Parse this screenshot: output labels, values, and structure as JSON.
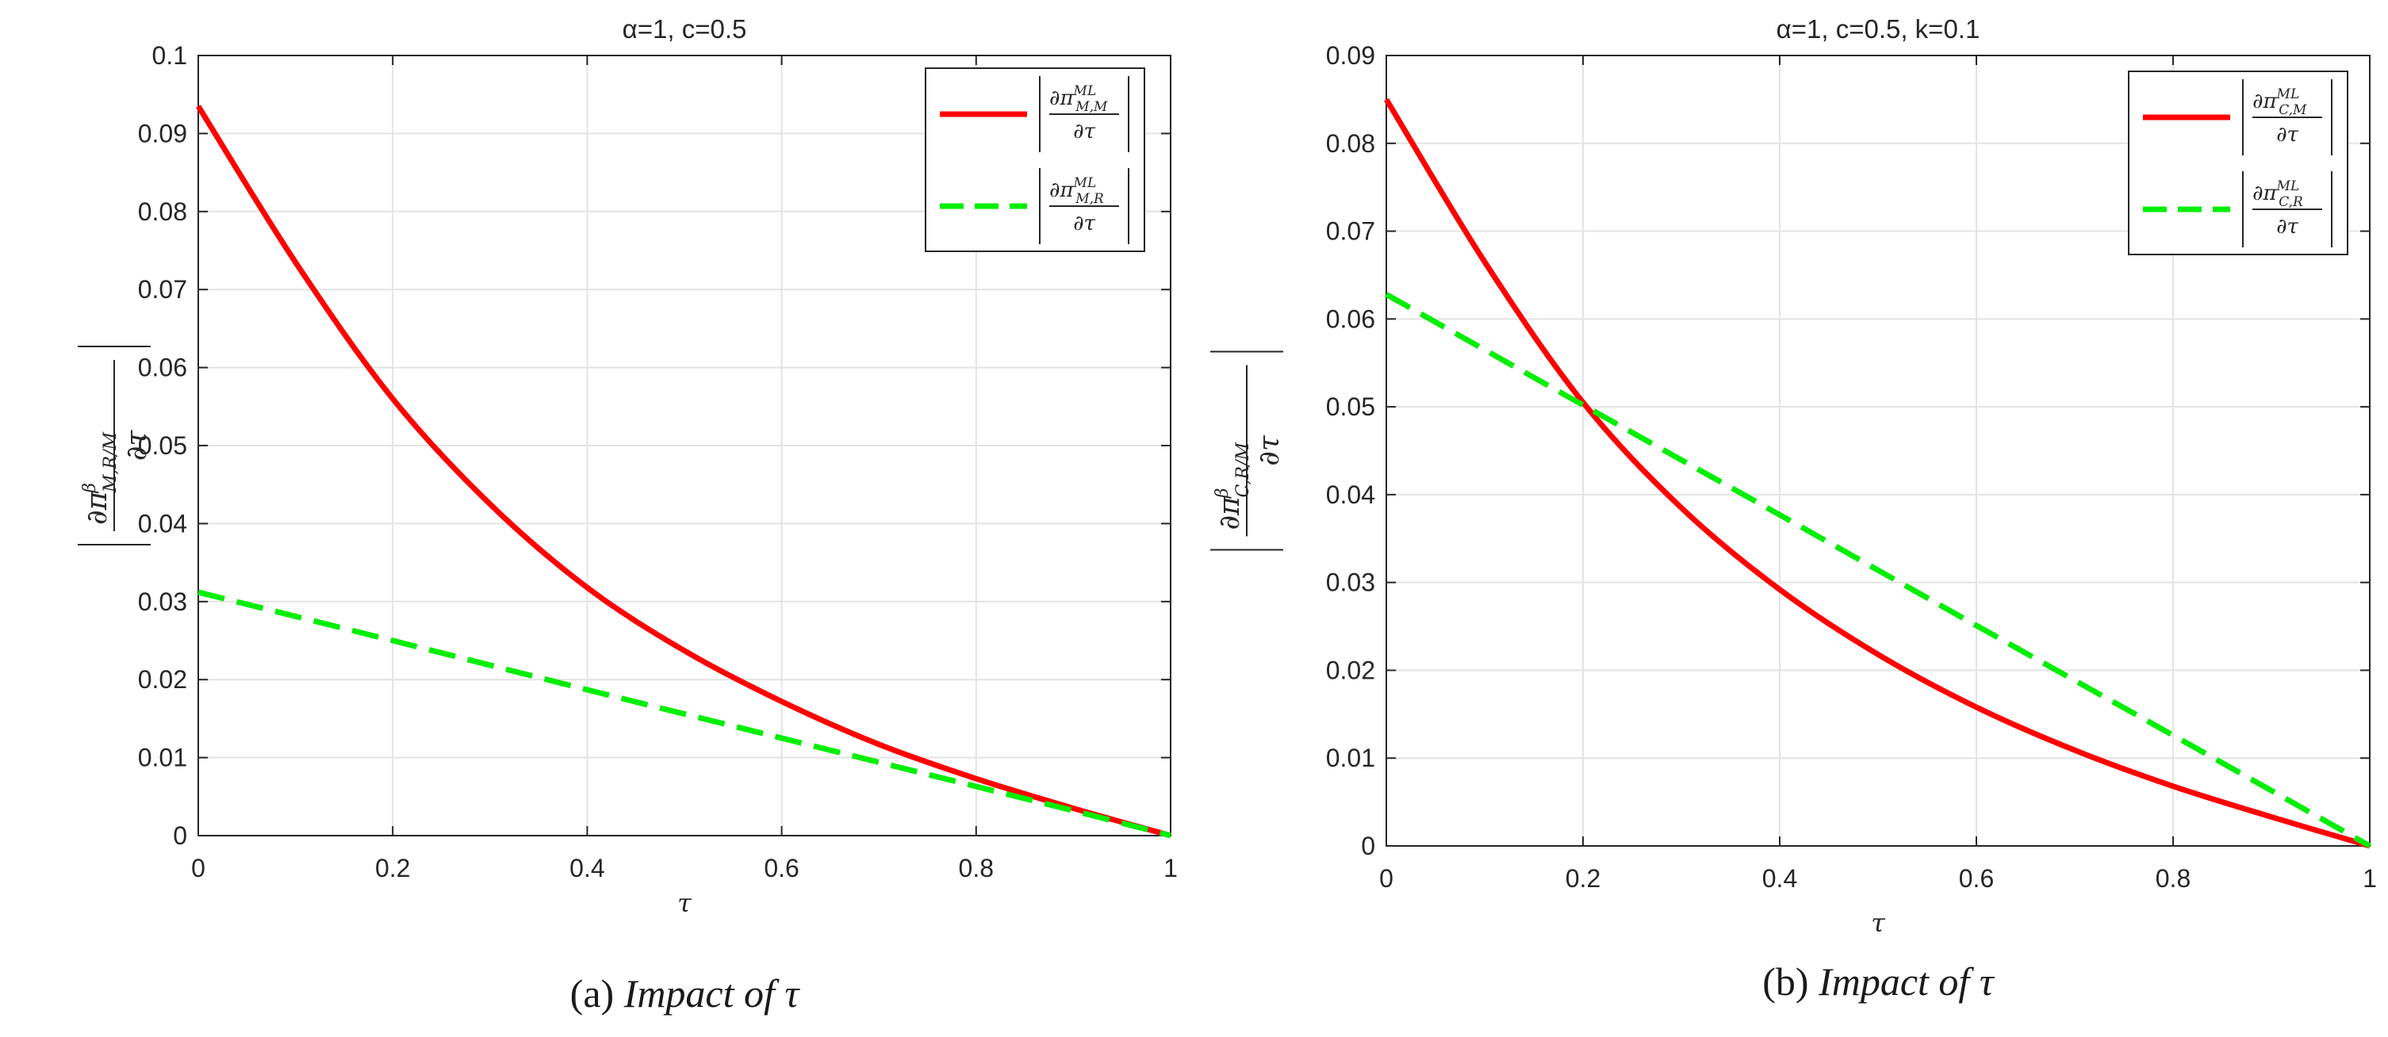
{
  "chart_data": [
    {
      "type": "line",
      "title": "α=1, c=0.5",
      "xlabel": "τ",
      "ylabel": {
        "numerator": "∂π",
        "superscript": "β",
        "subscript": "M,R/M",
        "denominator": "∂τ"
      },
      "xlim": [
        0,
        1
      ],
      "ylim": [
        0,
        0.1
      ],
      "xticks": [
        "0",
        "0.2",
        "0.4",
        "0.6",
        "0.8",
        "1"
      ],
      "yticks": [
        "0",
        "0.01",
        "0.02",
        "0.03",
        "0.04",
        "0.05",
        "0.06",
        "0.07",
        "0.08",
        "0.09",
        "0.1"
      ],
      "grid": true,
      "legend_position": "top-right",
      "series": [
        {
          "name": "|∂π^ML_M,M / ∂τ|",
          "legend_sup": "ML",
          "legend_sub": "M,M",
          "color": "#ff0000",
          "style": "solid",
          "x": [
            0,
            0.1,
            0.2,
            0.3,
            0.4,
            0.5,
            0.6,
            0.7,
            0.8,
            0.9,
            1.0
          ],
          "y": [
            0.0935,
            0.0735,
            0.056,
            0.0425,
            0.0318,
            0.0237,
            0.0172,
            0.0117,
            0.0073,
            0.0035,
            0.0
          ]
        },
        {
          "name": "|∂π^ML_M,R / ∂τ|",
          "legend_sup": "ML",
          "legend_sub": "M,R",
          "color": "#00ee00",
          "style": "dashed",
          "x": [
            0,
            0.2,
            0.4,
            0.6,
            0.8,
            0.9,
            1.0
          ],
          "y": [
            0.0312,
            0.025,
            0.0187,
            0.0125,
            0.0063,
            0.0032,
            0.0
          ]
        }
      ],
      "caption": {
        "label": "(a)",
        "text": "Impact of  τ"
      }
    },
    {
      "type": "line",
      "title": "α=1, c=0.5, k=0.1",
      "xlabel": "τ",
      "ylabel": {
        "numerator": "∂π",
        "superscript": "β",
        "subscript": "C,R/M",
        "denominator": "∂τ"
      },
      "xlim": [
        0,
        1
      ],
      "ylim": [
        0,
        0.09
      ],
      "xticks": [
        "0",
        "0.2",
        "0.4",
        "0.6",
        "0.8",
        "1"
      ],
      "yticks": [
        "0",
        "0.01",
        "0.02",
        "0.03",
        "0.04",
        "0.05",
        "0.06",
        "0.07",
        "0.08",
        "0.09"
      ],
      "grid": true,
      "legend_position": "top-right",
      "series": [
        {
          "name": "|∂π^ML_C,M / ∂τ|",
          "legend_sup": "ML",
          "legend_sub": "C,M",
          "color": "#ff0000",
          "style": "solid",
          "x": [
            0,
            0.1,
            0.2,
            0.3,
            0.4,
            0.5,
            0.6,
            0.7,
            0.8,
            0.9,
            1.0
          ],
          "y": [
            0.085,
            0.0665,
            0.0505,
            0.0385,
            0.0292,
            0.0218,
            0.0158,
            0.0109,
            0.0068,
            0.0033,
            0.0
          ]
        },
        {
          "name": "|∂π^ML_C,R / ∂τ|",
          "legend_sup": "ML",
          "legend_sub": "C,R",
          "color": "#00ee00",
          "style": "dashed",
          "x": [
            0,
            0.2,
            0.4,
            0.6,
            0.8,
            0.9,
            1.0
          ],
          "y": [
            0.0628,
            0.0502,
            0.0377,
            0.0251,
            0.0126,
            0.0063,
            0.0
          ]
        }
      ],
      "caption": {
        "label": "(b)",
        "text": "Impact of  τ"
      }
    }
  ]
}
